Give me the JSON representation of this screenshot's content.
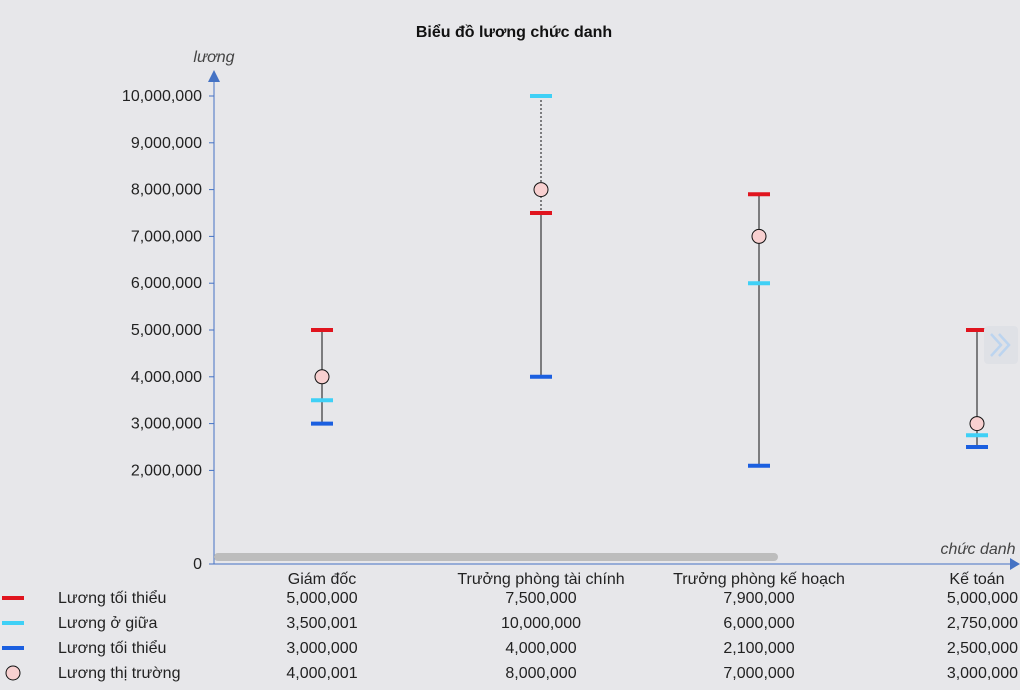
{
  "chart_data": {
    "type": "scatter",
    "title": "Biểu đồ lương chức danh",
    "ylabel": "lương",
    "xlabel": "chức danh",
    "ylim": [
      0,
      10000000
    ],
    "yticks": [
      "0",
      "2,000,000",
      "3,000,000",
      "4,000,000",
      "5,000,000",
      "6,000,000",
      "7,000,000",
      "8,000,000",
      "9,000,000",
      "10,000,000"
    ],
    "ytick_values": [
      0,
      2000000,
      3000000,
      4000000,
      5000000,
      6000000,
      7000000,
      8000000,
      9000000,
      10000000
    ],
    "categories": [
      "Giám đốc",
      "Trưởng phòng tài chính",
      "Trưởng phòng kế hoạch",
      "Kế toán"
    ],
    "series": [
      {
        "name": "Lương tối thiểu",
        "color": "#e0141e",
        "marker": "dash",
        "values": [
          5000000,
          7500000,
          7900000,
          5000000
        ],
        "labels": [
          "5,000,000",
          "7,500,000",
          "7,900,000",
          "5,000,000"
        ]
      },
      {
        "name": "Lương ở giữa",
        "color": "#3fd0f6",
        "marker": "dash",
        "values": [
          3500001,
          10000000,
          6000000,
          2750000
        ],
        "labels": [
          "3,500,001",
          "10,000,000",
          "6,000,000",
          "2,750,000"
        ]
      },
      {
        "name": "Lương tối thiểu",
        "color": "#1b5fe0",
        "marker": "dash",
        "values": [
          3000000,
          4000000,
          2100000,
          2500000
        ],
        "labels": [
          "3,000,000",
          "4,000,000",
          "2,100,000",
          "2,500,000"
        ]
      },
      {
        "name": "Lương thị trường",
        "color": "#f8d0d0",
        "marker": "circle",
        "values": [
          4000001,
          8000000,
          7000000,
          3000000
        ],
        "labels": [
          "4,000,001",
          "8,000,000",
          "7,000,000",
          "3,000,000"
        ]
      }
    ],
    "grid": false,
    "legend": "bottom-table",
    "axis_color": "#4472c4",
    "scrollbar_color": "#bdbdbd"
  }
}
